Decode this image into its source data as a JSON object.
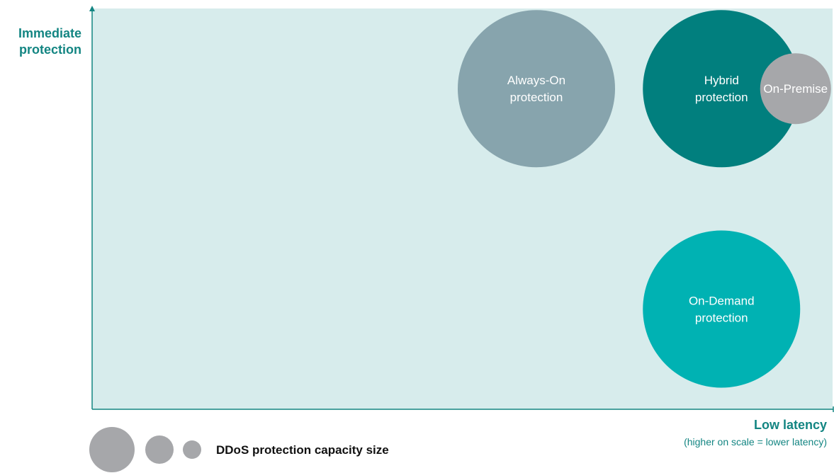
{
  "chart_data": {
    "type": "scatter",
    "ylabel": "Immediate\nprotection",
    "xlabel": "Low latency",
    "xlabel_sub": "(higher on scale = lower latency)",
    "grid": false,
    "series": [
      {
        "name": "Always-On\nprotection",
        "x": 60,
        "y": 80,
        "size": 3,
        "color": "#87a4ad"
      },
      {
        "name": "Hybrid\nprotection",
        "x": 85,
        "y": 80,
        "size": 3,
        "color": "#017f7e"
      },
      {
        "name": "On-Premise",
        "x": 95,
        "y": 80,
        "size": 2,
        "color": "#a6a7aa"
      },
      {
        "name": "On-Demand\nprotection",
        "x": 85,
        "y": 25,
        "size": 3,
        "color": "#00b2b3"
      }
    ],
    "legend": {
      "label": "DDoS protection capacity size",
      "sizes": [
        3,
        2,
        1
      ],
      "color": "#a6a7aa"
    },
    "colors": {
      "plot_background": "#d7ecec",
      "axis": "#138582"
    }
  }
}
